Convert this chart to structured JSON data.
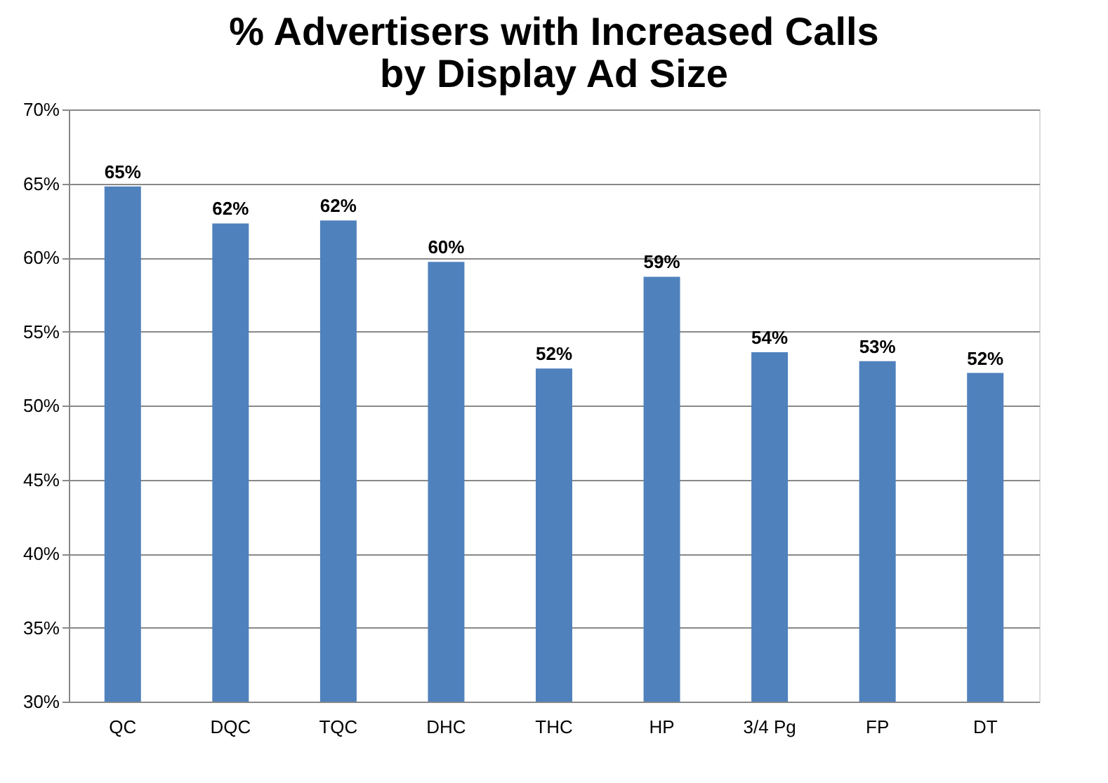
{
  "chart_data": {
    "type": "bar",
    "title": "% Advertisers with Increased Calls by Display Ad Size",
    "categories": [
      "QC",
      "DQC",
      "TQC",
      "DHC",
      "THC",
      "HP",
      "3/4 Pg",
      "FP",
      "DT"
    ],
    "values": [
      64.8,
      62.3,
      62.5,
      59.7,
      52.5,
      58.7,
      53.6,
      53.0,
      52.2
    ],
    "value_labels": [
      "65%",
      "62%",
      "62%",
      "60%",
      "52%",
      "59%",
      "54%",
      "53%",
      "52%"
    ],
    "color": "#4f81bd",
    "ylim": [
      30,
      70
    ],
    "yticks": [
      {
        "value": 30,
        "label": "30%"
      },
      {
        "value": 35,
        "label": "35%"
      },
      {
        "value": 40,
        "label": "40%"
      },
      {
        "value": 45,
        "label": "45%"
      },
      {
        "value": 50,
        "label": "50%"
      },
      {
        "value": 55,
        "label": "55%"
      },
      {
        "value": 60,
        "label": "60%"
      },
      {
        "value": 65,
        "label": "65%"
      },
      {
        "value": 70,
        "label": "70%"
      }
    ],
    "grid": "y"
  }
}
